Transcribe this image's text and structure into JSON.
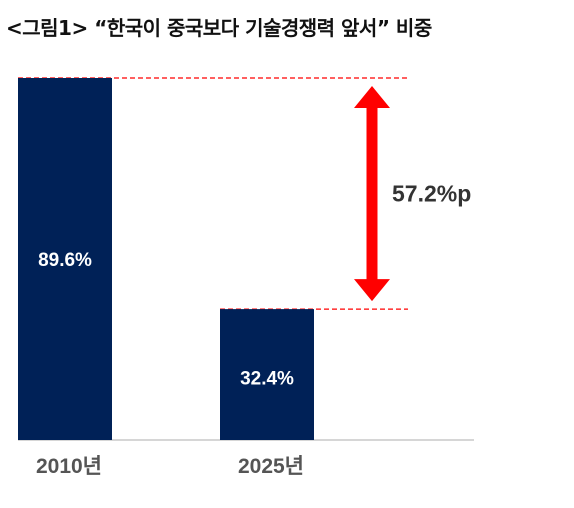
{
  "title": "<그림1> “한국이 중국보다 기술경쟁력 앞서” 비중",
  "chart_data": {
    "type": "bar",
    "categories": [
      "2010년",
      "2025년"
    ],
    "values": [
      89.6,
      32.4
    ],
    "value_labels": [
      "89.6%",
      "32.4%"
    ],
    "ylim": [
      0,
      89.6
    ],
    "annotation": "57.2%p",
    "colors": {
      "bar": "#002157",
      "arrow": "#ff0000",
      "dash": "#ff0000"
    }
  }
}
